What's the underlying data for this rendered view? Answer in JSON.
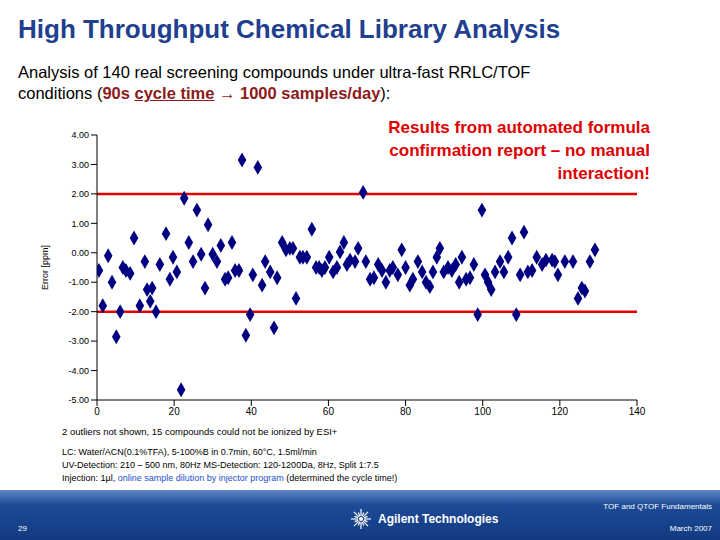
{
  "slide": {
    "title": "High Throughput Chemical Library Analysis",
    "subtitle_parts": [
      "Analysis of 140 real screening compounds under ultra-fast RRLC/TOF conditions (",
      "90s ",
      "cycle time",
      " → 1000 samples/day",
      "):"
    ],
    "note": "2 outliers not shown, 15 compounds could not be ionized by ESI+",
    "conditions": [
      [
        "LC: Water/ACN(0.1%TFA), 5-100%B in 0.7min, 60°C, 1.5ml/min"
      ],
      [
        "UV-Detection: 210 – 500 nm, 80Hz MS-Detection: 120-1200Da, 8Hz, Split 1:7.5"
      ],
      [
        "Injection: 1µl, ",
        "online sample dilution by injector program",
        " (determined the cycle time!)"
      ]
    ],
    "footer": {
      "topic": "TOF and QTOF Fundamentals",
      "page": "29",
      "company": "Agilent Technologies",
      "date": "March 2007"
    }
  },
  "chart_data": {
    "type": "scatter",
    "title": "Results from automated formula confirmation report – no manual interaction!",
    "y_label": "Error [ppm]",
    "x": [
      0.5,
      1.5,
      2.9,
      3.9,
      5.0,
      6.0,
      6.7,
      7.5,
      8.6,
      9.6,
      11.1,
      12.4,
      13.0,
      13.8,
      14.3,
      15.3,
      16.3,
      17.9,
      18.9,
      19.7,
      20.7,
      21.8,
      22.6,
      23.8,
      24.9,
      25.9,
      27.0,
      28.0,
      28.8,
      30.0,
      31.1,
      32.1,
      33.2,
      34.0,
      35.0,
      35.8,
      36.8,
      37.6,
      38.6,
      39.7,
      40.4,
      41.7,
      42.8,
      43.6,
      44.9,
      45.9,
      46.7,
      48.0,
      49.0,
      50.0,
      50.8,
      51.6,
      52.6,
      53.4,
      54.4,
      55.7,
      56.8,
      57.6,
      58.3,
      59.1,
      60.2,
      61.2,
      62.2,
      63.0,
      64.0,
      64.8,
      65.6,
      66.9,
      67.7,
      69.0,
      69.7,
      70.8,
      71.8,
      72.9,
      73.9,
      74.9,
      75.9,
      76.7,
      78.0,
      79.0,
      80.0,
      81.1,
      81.9,
      83.2,
      84.3,
      85.3,
      86.3,
      87.1,
      88.1,
      88.9,
      89.9,
      91.0,
      92.0,
      93.0,
      93.9,
      94.6,
      95.7,
      96.7,
      97.7,
      98.7,
      99.8,
      100.6,
      101.4,
      102.2,
      103.2,
      104.5,
      105.5,
      106.6,
      107.6,
      108.7,
      109.7,
      110.7,
      111.7,
      112.8,
      114.0,
      115.4,
      116.4,
      118.0,
      118.7,
      119.5,
      121.3,
      123.4,
      124.7,
      125.7,
      126.5,
      127.8,
      129.1
    ],
    "values": [
      -0.6,
      -1.8,
      -0.1,
      -1.0,
      -2.85,
      -2.0,
      -0.5,
      -0.6,
      -0.7,
      0.5,
      -1.8,
      -0.3,
      -1.25,
      -1.65,
      -1.2,
      -2.0,
      -0.4,
      0.65,
      -0.9,
      -0.15,
      -0.65,
      -4.65,
      1.85,
      0.35,
      -0.3,
      1.45,
      -0.05,
      -1.2,
      0.95,
      -0.05,
      -0.3,
      0.25,
      -0.9,
      -0.85,
      0.35,
      -0.6,
      -0.6,
      3.15,
      -2.8,
      -2.1,
      -0.75,
      2.9,
      -1.1,
      -0.3,
      -0.65,
      -2.55,
      -0.85,
      0.35,
      0.1,
      0.15,
      0.15,
      -1.55,
      -0.15,
      -0.15,
      -0.15,
      0.8,
      -0.5,
      -0.5,
      -0.6,
      -0.5,
      -0.15,
      -0.65,
      -0.5,
      0.03,
      0.35,
      -0.4,
      -0.25,
      -0.3,
      0.15,
      2.05,
      -0.3,
      -0.9,
      -0.85,
      -0.4,
      -0.6,
      -1.0,
      -0.6,
      -0.5,
      -0.75,
      0.1,
      -0.5,
      -1.1,
      -0.9,
      -0.3,
      -0.65,
      -1.0,
      -1.15,
      -0.65,
      -0.15,
      0.15,
      -0.65,
      -0.5,
      -0.6,
      -0.4,
      -1.0,
      -0.15,
      -0.9,
      -0.85,
      -0.4,
      -2.1,
      1.45,
      -0.75,
      -1.0,
      -1.25,
      -0.65,
      -0.3,
      -0.65,
      -0.15,
      0.5,
      -2.1,
      -0.75,
      0.7,
      -0.65,
      -0.6,
      -0.15,
      -0.4,
      -0.25,
      -0.25,
      -0.3,
      -0.75,
      -0.3,
      -0.3,
      -1.55,
      -1.2,
      -1.3,
      -0.3,
      0.1
    ],
    "color": "#000080",
    "marker": "diamond",
    "limits": [
      2,
      -2
    ],
    "xlim": [
      0,
      140
    ],
    "xticks": [
      0,
      20,
      40,
      60,
      80,
      100,
      120,
      140
    ],
    "ylim": [
      -5,
      4
    ],
    "yticks": [
      {
        "value": -5,
        "label": "-5.00"
      },
      {
        "value": -4,
        "label": "-4.00"
      },
      {
        "value": -3,
        "label": "-3.00"
      },
      {
        "value": -2,
        "label": "-2.00"
      },
      {
        "value": -1,
        "label": "-1.00"
      },
      {
        "value": 0,
        "label": "0.00"
      },
      {
        "value": 1,
        "label": "1.00"
      },
      {
        "value": 2,
        "label": "2.00"
      },
      {
        "value": 3,
        "label": "3.00"
      },
      {
        "value": 4,
        "label": "4.00"
      }
    ],
    "grid": false
  }
}
